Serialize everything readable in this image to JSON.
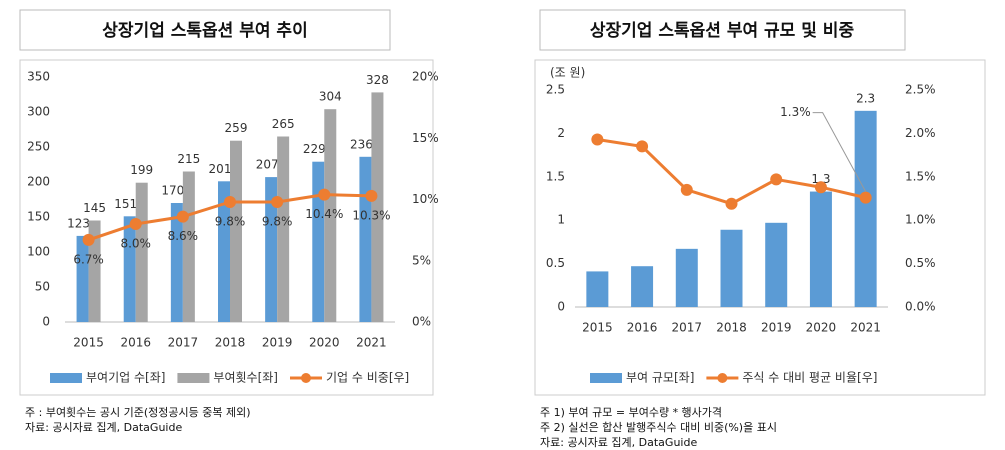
{
  "chart_data": [
    {
      "type": "bar",
      "title": "상장기업 스톡옵션 부여 추이",
      "categories": [
        "2015",
        "2016",
        "2017",
        "2018",
        "2019",
        "2020",
        "2021"
      ],
      "series": [
        {
          "name": "부여기업 수[좌]",
          "color": "#5b9bd5",
          "type": "bar",
          "values": [
            123,
            151,
            170,
            201,
            207,
            229,
            236
          ]
        },
        {
          "name": "부여횟수[좌]",
          "color": "#a5a5a5",
          "type": "bar",
          "values": [
            145,
            199,
            215,
            259,
            265,
            304,
            328
          ]
        },
        {
          "name": "기업 수 비중[우]",
          "color": "#ed7d31",
          "type": "line",
          "axis": "y2",
          "values": [
            6.7,
            8.0,
            8.6,
            9.8,
            9.8,
            10.4,
            10.3
          ],
          "value_labels": [
            "6.7%",
            "8.0%",
            "8.6%",
            "9.8%",
            "9.8%",
            "10.4%",
            "10.3%"
          ]
        }
      ],
      "ylim": [
        0,
        350
      ],
      "yticks": [
        0,
        50,
        100,
        150,
        200,
        250,
        300,
        350
      ],
      "y2lim": [
        0,
        20
      ],
      "y2ticks": [
        {
          "value": 0,
          "label": "0%"
        },
        {
          "value": 5,
          "label": "5%"
        },
        {
          "value": 10,
          "label": "10%"
        },
        {
          "value": 15,
          "label": "15%"
        },
        {
          "value": 20,
          "label": "20%"
        }
      ],
      "grid": false,
      "legend": "bottom",
      "notes": [
        "주   : 부여횟수는 공시 기준(정정공시등 중복 제외)",
        "자료: 공시자료 집계, DataGuide"
      ]
    },
    {
      "type": "bar",
      "title": "상장기업 스톡옵션 부여 규모 및 비중",
      "y_label": "(조 원)",
      "categories": [
        "2015",
        "2016",
        "2017",
        "2018",
        "2019",
        "2020",
        "2021"
      ],
      "series": [
        {
          "name": "부여 규모[좌]",
          "color": "#5b9bd5",
          "type": "bar",
          "values": [
            0.41,
            0.47,
            0.67,
            0.89,
            0.97,
            1.33,
            2.26
          ],
          "value_labels": [
            null,
            null,
            null,
            null,
            null,
            "1.3",
            "2.3"
          ]
        },
        {
          "name": "주식 수 대비 평균 비율[우]",
          "color": "#ed7d31",
          "type": "line",
          "axis": "y2",
          "values": [
            1.93,
            1.85,
            1.35,
            1.19,
            1.47,
            1.38,
            1.26
          ],
          "value_labels": [
            null,
            null,
            null,
            null,
            null,
            null,
            "1.3%"
          ]
        }
      ],
      "ylim": [
        0,
        2.5
      ],
      "yticks": [
        0,
        0.5,
        1,
        1.5,
        2,
        2.5
      ],
      "y2lim": [
        0,
        2.5
      ],
      "y2ticks": [
        {
          "value": 0,
          "label": "0.0%"
        },
        {
          "value": 0.5,
          "label": "0.5%"
        },
        {
          "value": 1,
          "label": "1.0%"
        },
        {
          "value": 1.5,
          "label": "1.5%"
        },
        {
          "value": 2,
          "label": "2.0%"
        },
        {
          "value": 2.5,
          "label": "2.5%"
        }
      ],
      "grid": false,
      "legend": "bottom",
      "notes": [
        "주 1) 부여 규모 = 부여수량 * 행사가격",
        "주 2) 실선은 합산 발행주식수 대비 비중(%)을 표시",
        "자료: 공시자료 집계, DataGuide"
      ]
    }
  ]
}
